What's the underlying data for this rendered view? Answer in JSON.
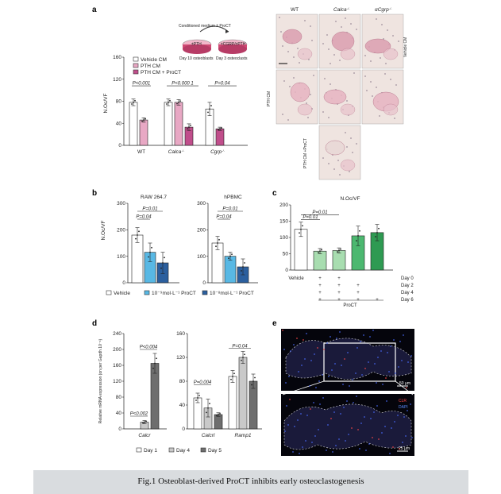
{
  "caption": "Fig.1 Osteoblast-derived ProCT inhibits early osteoclastogenesis",
  "panels": {
    "a": "a",
    "b": "b",
    "c": "c",
    "d": "d",
    "e": "e"
  },
  "colors": {
    "white_bar": "#ffffff",
    "pink_light": "#e8a8c4",
    "pink_dark": "#c04e8b",
    "blue_light": "#58b8e4",
    "blue_dark": "#2b5f9e",
    "green_light": "#a8ddb0",
    "green_mid": "#4cb870",
    "green_dark": "#2e9a52",
    "grey_light": "#c9c9c9",
    "grey_dark": "#6e6e6e"
  },
  "schematic": {
    "title": "Conditioned medium ± ProCT",
    "dish1_label": "±PTH",
    "dish2_label": "±CGRP/±PTH",
    "day10": "Day 10 osteoblasts",
    "day3": "Day 3 osteoclasts"
  },
  "histology": {
    "col_labels": [
      "WT",
      "Calca",
      "αCgrp"
    ],
    "col_sups": [
      "",
      "-/-",
      "-/-"
    ],
    "row_labels": [
      "Vehicle CM",
      "PTH CM",
      "PTH CM +ProCT"
    ]
  },
  "fluorescence": {
    "scale_top": "50 µm",
    "scale_bottom": "25 µm",
    "legend_clr": "CLR",
    "legend_dapi": "DAPI"
  },
  "chart_data": [
    {
      "panel": "a",
      "type": "bar",
      "ylabel": "N.Oc/VF",
      "ylim": [
        0,
        160
      ],
      "yticks": [
        0,
        40,
        80,
        120,
        160
      ],
      "categories": [
        "WT",
        "Calca",
        "Cgrp"
      ],
      "category_sups": [
        "",
        "-/-",
        "-/-"
      ],
      "series": [
        {
          "name": "Vehicle CM",
          "values": [
            78,
            78,
            66
          ],
          "errors": [
            6,
            6,
            12
          ]
        },
        {
          "name": "PTH CM",
          "values": [
            46,
            78,
            null
          ],
          "errors": [
            4,
            5,
            null
          ]
        },
        {
          "name": "PTH CM + ProCT",
          "values": [
            null,
            33,
            30
          ],
          "errors": [
            null,
            6,
            3
          ]
        }
      ],
      "annotations": [
        "P<0.001",
        "P<0.000 1",
        "P=0.04"
      ]
    },
    {
      "panel": "b",
      "type": "bar",
      "ylabel": "N.Oc/VF",
      "ylim": [
        0,
        300
      ],
      "yticks": [
        0,
        100,
        200,
        300
      ],
      "subplots": [
        {
          "title": "RAW 264.7",
          "values": [
            180,
            115,
            75
          ],
          "errors": [
            28,
            35,
            40
          ],
          "annotations": [
            "P=0.01",
            "P=0.04"
          ]
        },
        {
          "title": "hPBMC",
          "values": [
            150,
            100,
            60
          ],
          "errors": [
            25,
            15,
            30
          ],
          "annotations": [
            "P=0.01",
            "P=0.04"
          ]
        }
      ],
      "legend": [
        "Vehicle",
        "10⁻⁹mol·L⁻¹ ProCT",
        "10⁻⁸mol·L⁻¹ ProCT"
      ]
    },
    {
      "panel": "c",
      "type": "bar",
      "title": "N.Oc/VF",
      "ylim": [
        0,
        200
      ],
      "yticks": [
        0,
        50,
        100,
        150,
        200
      ],
      "values": [
        125,
        58,
        60,
        105,
        115
      ],
      "errors": [
        22,
        8,
        8,
        30,
        25
      ],
      "annotations": [
        "P=0.01",
        "P=0.01"
      ],
      "row_labels": [
        "Day 0",
        "Day 2",
        "Day 4",
        "Day 6"
      ],
      "first_label": "Vehicle",
      "group_label": "ProCT",
      "plus_matrix": [
        [
          false,
          true,
          true,
          false,
          false
        ],
        [
          false,
          true,
          true,
          true,
          false
        ],
        [
          false,
          true,
          true,
          true,
          false
        ],
        [
          false,
          true,
          true,
          true,
          true
        ]
      ]
    },
    {
      "panel": "d",
      "type": "bar",
      "ylabel": "Relative mRNA expression (on per Gapdh 10⁻⁶)",
      "subplots": [
        {
          "genes": [
            "Calcr"
          ],
          "ylim": [
            0,
            240
          ],
          "yticks": [
            0,
            40,
            80,
            120,
            160,
            200,
            240
          ],
          "values": [
            [
              null,
              17,
              165
            ]
          ],
          "errors": [
            [
              null,
              4,
              25
            ]
          ],
          "annotations": [
            "P<0.004",
            "P<0.002"
          ]
        },
        {
          "genes": [
            "Calcrl",
            "Ramp1"
          ],
          "ylim": [
            0,
            160
          ],
          "yticks": [
            0,
            40,
            80,
            120,
            160
          ],
          "values": [
            [
              52,
              35,
              24
            ],
            [
              88,
              120,
              80
            ]
          ],
          "errors": [
            [
              8,
              15,
              3
            ],
            [
              10,
              10,
              12
            ]
          ],
          "annotations": [
            "P=0.04",
            "P=0.004"
          ]
        }
      ],
      "legend": [
        "Day 1",
        "Day 4",
        "Day 5"
      ]
    }
  ]
}
